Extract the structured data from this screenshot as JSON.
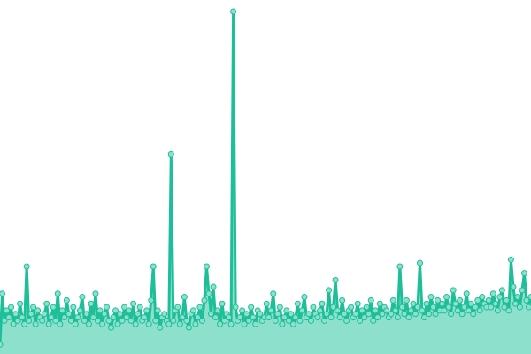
{
  "chart_data": {
    "type": "area",
    "title": "",
    "xlabel": "",
    "ylabel": "",
    "ylim": [
      0,
      104
    ],
    "grid": false,
    "legend": "none",
    "colors": {
      "line": "#1dbf98",
      "fill": "#8de0cc",
      "marker_fill": "#8de0cc",
      "marker_stroke": "#1dbf98"
    },
    "values": [
      2,
      17,
      9,
      12,
      10,
      13,
      8,
      11,
      9,
      14,
      10,
      8,
      25,
      9,
      11,
      13,
      8,
      12,
      10,
      9,
      11,
      14,
      8,
      10,
      13,
      9,
      17,
      8,
      12,
      10,
      15,
      11,
      9,
      13,
      8,
      10,
      12,
      16,
      9,
      11,
      8,
      14,
      10,
      17,
      9,
      12,
      8,
      11,
      13,
      9,
      7,
      10,
      12,
      8,
      11,
      9,
      13,
      10,
      12,
      9,
      14,
      8,
      11,
      13,
      9,
      10,
      12,
      8,
      15,
      25,
      9,
      12,
      7,
      10,
      11,
      9,
      8,
      58,
      9,
      12,
      13,
      8,
      10,
      16,
      9,
      7,
      11,
      12,
      8,
      10,
      13,
      9,
      15,
      25,
      17,
      11,
      19,
      10,
      12,
      8,
      14,
      9,
      11,
      10,
      8,
      100,
      13,
      9,
      10,
      12,
      8,
      11,
      9,
      13,
      10,
      8,
      12,
      11,
      9,
      10,
      14,
      10,
      12,
      17,
      9,
      11,
      13,
      8,
      10,
      12,
      9,
      11,
      8,
      10,
      14,
      9,
      12,
      16,
      10,
      11,
      9,
      13,
      11,
      10,
      12,
      14,
      9,
      11,
      18,
      10,
      13,
      21,
      12,
      10,
      15,
      11,
      9,
      12,
      13,
      10,
      11,
      14,
      9,
      12,
      10,
      13,
      11,
      15,
      9,
      12,
      10,
      14,
      11,
      13,
      12,
      10,
      11,
      15,
      12,
      10,
      25,
      13,
      11,
      15,
      10,
      12,
      14,
      11,
      13,
      26,
      12,
      10,
      14,
      11,
      16,
      13,
      11,
      15,
      12,
      14,
      12,
      16,
      13,
      11,
      18,
      14,
      12,
      15,
      11,
      13,
      17,
      12,
      14,
      11,
      13,
      15,
      12,
      16,
      14,
      13,
      15,
      13,
      17,
      14,
      12,
      16,
      18,
      13,
      15,
      12,
      27,
      19,
      14,
      16,
      13,
      18,
      23,
      15,
      13,
      16
    ]
  }
}
